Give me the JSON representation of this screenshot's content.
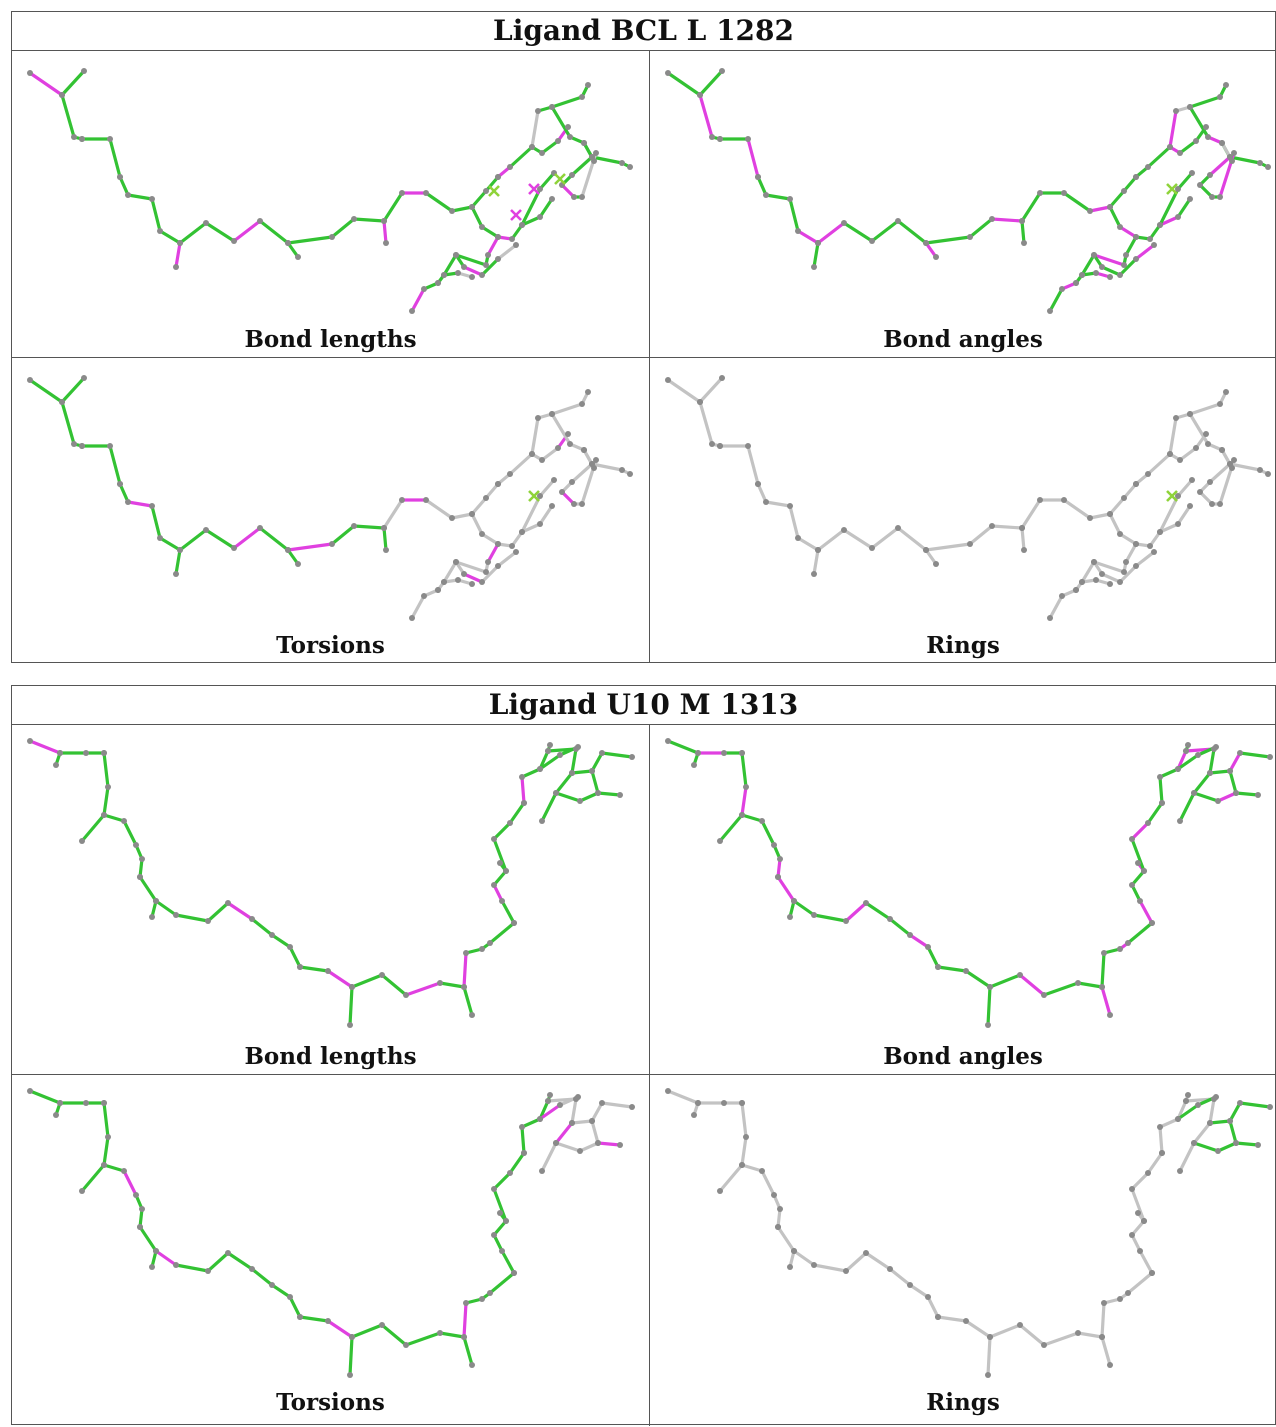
{
  "ligands": [
    {
      "title": "Ligand BCL L 1282",
      "molecule": "bcl",
      "panels": [
        {
          "label": "Bond lengths",
          "scheme": "bl"
        },
        {
          "label": "Bond angles",
          "scheme": "ba"
        },
        {
          "label": "Torsions",
          "scheme": "to"
        },
        {
          "label": "Rings",
          "scheme": "ri"
        }
      ]
    },
    {
      "title": "Ligand U10 M 1313",
      "molecule": "u10",
      "panels": [
        {
          "label": "Bond lengths",
          "scheme": "bl"
        },
        {
          "label": "Bond angles",
          "scheme": "ba"
        },
        {
          "label": "Torsions",
          "scheme": "to"
        },
        {
          "label": "Rings",
          "scheme": "ri"
        }
      ]
    }
  ],
  "colors": {
    "green": "#33c233",
    "magenta": "#e040e0",
    "grey": "#c3c3c3",
    "atom": "#8a8a8a"
  }
}
